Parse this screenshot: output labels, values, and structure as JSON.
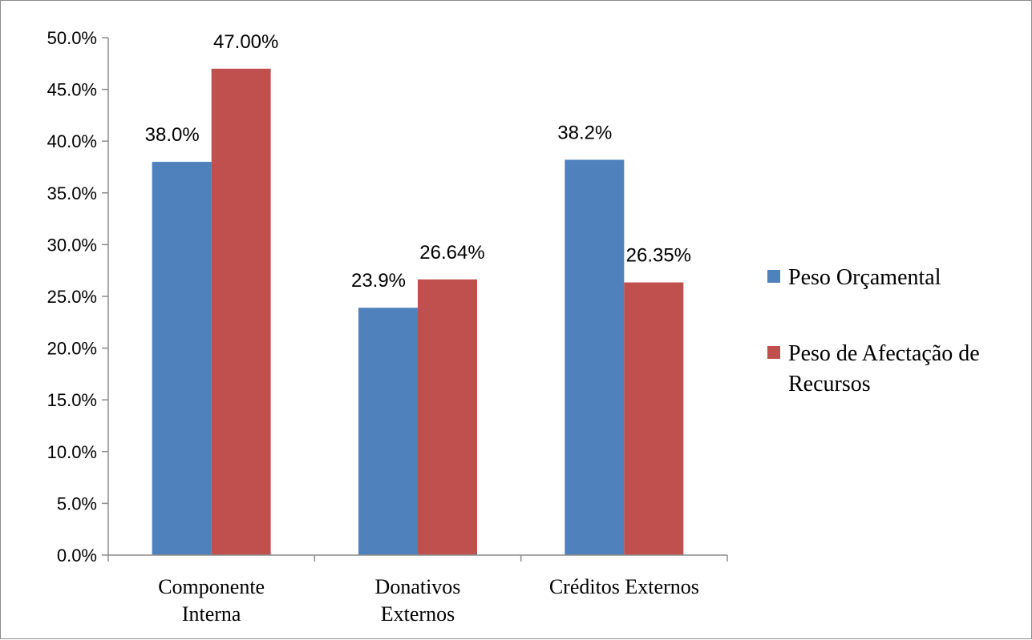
{
  "chart_data": {
    "type": "bar",
    "categories": [
      [
        "Componente",
        "Interna"
      ],
      [
        "Donativos",
        "Externos"
      ],
      [
        "Créditos Externos"
      ]
    ],
    "series": [
      {
        "name": "Peso Orçamental",
        "color": "#4F81BD",
        "values": [
          38.0,
          23.9,
          38.2
        ],
        "labels": [
          "38.0%",
          "23.9%",
          "38.2%"
        ]
      },
      {
        "name": "Peso de Afectação de Recursos",
        "legend_lines": [
          "Peso de Afectação de",
          "Recursos"
        ],
        "color": "#C0504D",
        "values": [
          47.0,
          26.64,
          26.35
        ],
        "labels": [
          "47.00%",
          "26.64%",
          "26.35%"
        ]
      }
    ],
    "ylim": [
      0,
      50
    ],
    "yticks": [
      "0.0%",
      "5.0%",
      "10.0%",
      "15.0%",
      "20.0%",
      "25.0%",
      "30.0%",
      "35.0%",
      "40.0%",
      "45.0%",
      "50.0%"
    ],
    "grid": false,
    "legend": "right"
  }
}
